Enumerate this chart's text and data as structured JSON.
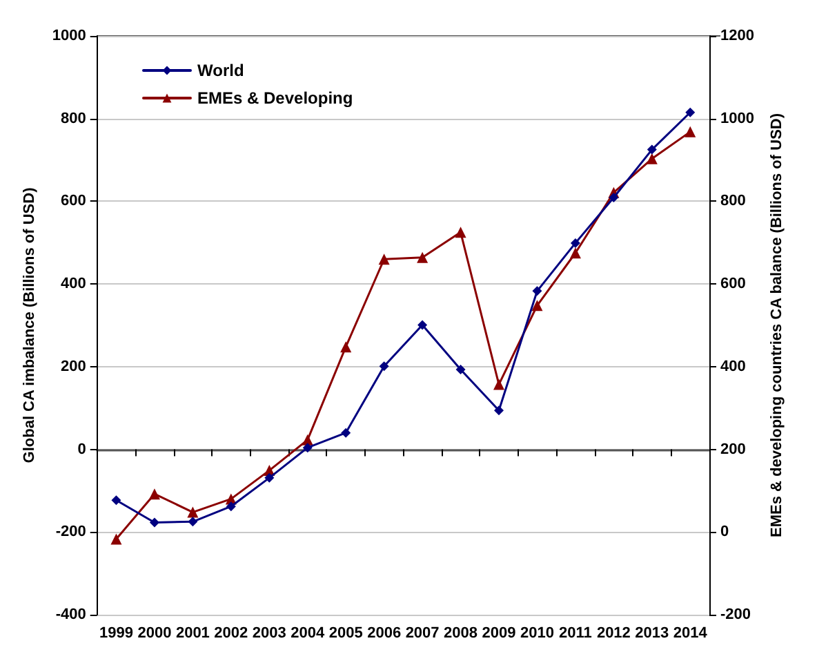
{
  "chart_data": {
    "type": "line",
    "ylabel": "Global CA imbalance (Billions of USD)",
    "y2label": "EMEs & developing countries CA balance (Billions of USD)",
    "categories": [
      "1999",
      "2000",
      "2001",
      "2002",
      "2003",
      "2004",
      "2005",
      "2006",
      "2007",
      "2008",
      "2009",
      "2010",
      "2011",
      "2012",
      "2013",
      "2014"
    ],
    "series": [
      {
        "name": "World",
        "color": "#000080",
        "marker": "diamond",
        "values": [
          -123,
          -177,
          -175,
          -138,
          -69,
          4,
          40,
          201,
          301,
          193,
          94,
          383,
          499,
          609,
          725,
          815
        ]
      },
      {
        "name": "EMEs & Developing",
        "color": "#8b0000",
        "marker": "triangle",
        "axis": "y2",
        "values": [
          -17,
          92,
          48,
          80,
          149,
          223,
          448,
          660,
          664,
          725,
          357,
          548,
          675,
          821,
          903,
          968
        ]
      }
    ],
    "ylim": [
      -400,
      1000
    ],
    "yticks": [
      -400,
      -200,
      0,
      200,
      400,
      600,
      800,
      1000
    ],
    "y2lim": [
      -200,
      1200
    ],
    "y2ticks": [
      -200,
      0,
      200,
      400,
      600,
      800,
      1000,
      1200
    ],
    "grid": "y",
    "legend": "top left",
    "line_style": "solid"
  }
}
